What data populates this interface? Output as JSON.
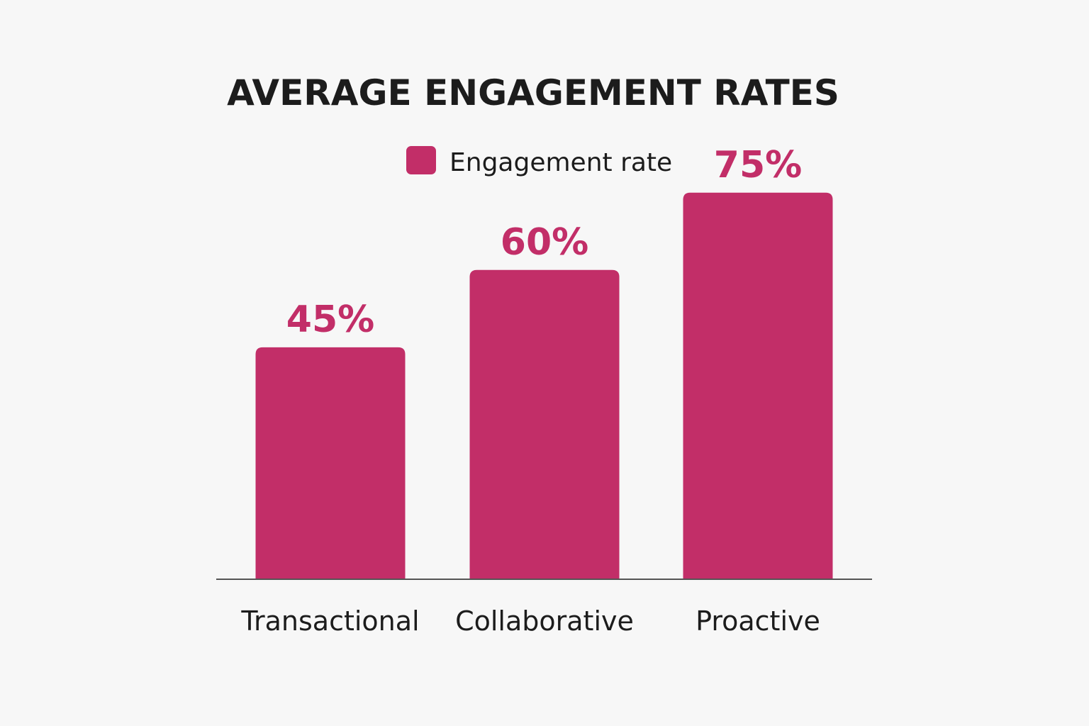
{
  "chart_data": {
    "type": "bar",
    "title": "AVERAGE ENGAGEMENT RATES",
    "legend": [
      "Engagement rate"
    ],
    "categories": [
      "Transactional",
      "Collaborative",
      "Proactive"
    ],
    "series": [
      {
        "name": "Engagement rate",
        "values": [
          45,
          60,
          75
        ],
        "labels": [
          "45%",
          "60%",
          "75%"
        ],
        "color": "#c22e68"
      }
    ],
    "ylim": [
      0,
      100
    ],
    "grid": false,
    "legend_position": "top-center",
    "axis_color": "#555555"
  }
}
